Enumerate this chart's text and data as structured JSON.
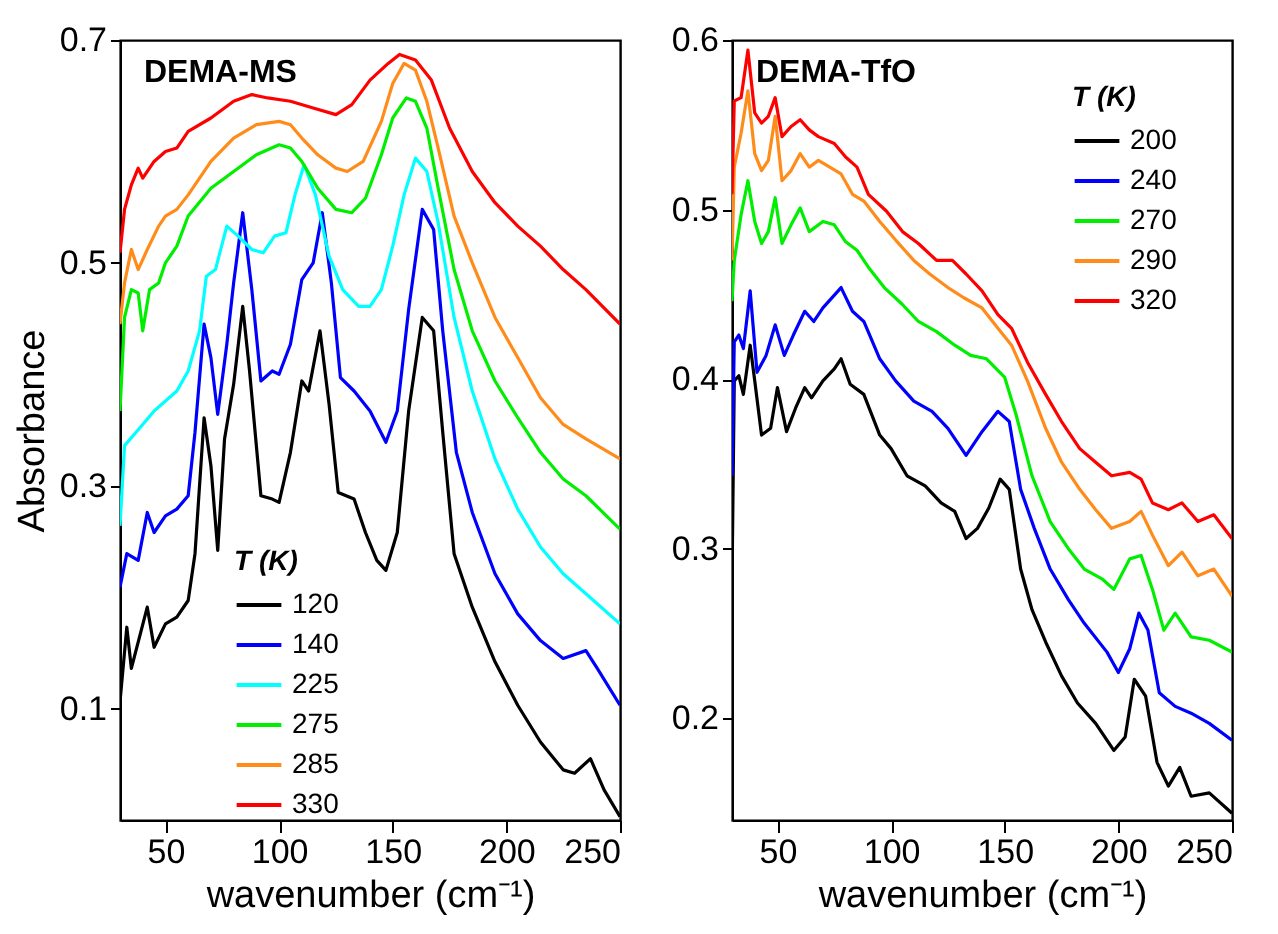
{
  "chart_data": [
    {
      "type": "line",
      "title": "DEMA-MS",
      "xlabel": "wavenumber (cm⁻¹)",
      "ylabel": "Absorbance",
      "legend_title": "T (K)",
      "legend": "bottom left",
      "grid": false,
      "line_style": "solid",
      "marker": "none",
      "xlim": [
        30,
        250
      ],
      "xticks": [
        50,
        100,
        150,
        200,
        250
      ],
      "ylim": [
        0,
        0.7
      ],
      "yticks": [
        0.1,
        0.3,
        0.5,
        0.7
      ],
      "series": [
        {
          "name": "120",
          "color": "#000000",
          "x": [
            30,
            33,
            35,
            42,
            45,
            50,
            55,
            60,
            63,
            67,
            70,
            73,
            76,
            80,
            84,
            87,
            92,
            97,
            100,
            105,
            110,
            113,
            118,
            122,
            126,
            133,
            138,
            143,
            147,
            152,
            157,
            163,
            168,
            172,
            177,
            185,
            195,
            205,
            215,
            225,
            230,
            237,
            243,
            250
          ],
          "values": [
            0.106,
            0.173,
            0.136,
            0.191,
            0.155,
            0.176,
            0.182,
            0.197,
            0.239,
            0.361,
            0.318,
            0.242,
            0.342,
            0.391,
            0.461,
            0.403,
            0.291,
            0.288,
            0.285,
            0.33,
            0.394,
            0.385,
            0.439,
            0.373,
            0.294,
            0.288,
            0.258,
            0.233,
            0.224,
            0.258,
            0.367,
            0.451,
            0.439,
            0.348,
            0.239,
            0.191,
            0.142,
            0.103,
            0.07,
            0.045,
            0.042,
            0.055,
            0.027,
            0.003
          ]
        },
        {
          "name": "140",
          "color": "#0000ff",
          "x": [
            30,
            33,
            38,
            42,
            45,
            50,
            55,
            60,
            63,
            67,
            70,
            73,
            77,
            80,
            84,
            88,
            92,
            97,
            100,
            105,
            110,
            115,
            119,
            123,
            127,
            133,
            140,
            147,
            152,
            157,
            163,
            168,
            172,
            178,
            185,
            195,
            205,
            215,
            225,
            235,
            240,
            250
          ],
          "values": [
            0.209,
            0.239,
            0.233,
            0.276,
            0.258,
            0.273,
            0.279,
            0.291,
            0.348,
            0.445,
            0.415,
            0.364,
            0.427,
            0.482,
            0.545,
            0.476,
            0.394,
            0.403,
            0.4,
            0.427,
            0.485,
            0.5,
            0.545,
            0.482,
            0.397,
            0.385,
            0.367,
            0.339,
            0.367,
            0.458,
            0.548,
            0.53,
            0.439,
            0.33,
            0.276,
            0.221,
            0.185,
            0.161,
            0.145,
            0.152,
            0.136,
            0.103
          ]
        },
        {
          "name": "225",
          "color": "#00ffff",
          "x": [
            30,
            32,
            40,
            45,
            50,
            55,
            60,
            65,
            68,
            72,
            77,
            82,
            88,
            93,
            98,
            103,
            107,
            111,
            116,
            122,
            128,
            135,
            140,
            145,
            150,
            155,
            160,
            165,
            170,
            177,
            185,
            195,
            205,
            215,
            225,
            235,
            250
          ],
          "values": [
            0.264,
            0.336,
            0.355,
            0.367,
            0.376,
            0.385,
            0.403,
            0.439,
            0.488,
            0.494,
            0.533,
            0.524,
            0.512,
            0.509,
            0.524,
            0.527,
            0.561,
            0.588,
            0.561,
            0.506,
            0.476,
            0.461,
            0.461,
            0.476,
            0.515,
            0.561,
            0.594,
            0.582,
            0.536,
            0.451,
            0.385,
            0.324,
            0.279,
            0.245,
            0.221,
            0.203,
            0.176
          ]
        },
        {
          "name": "275",
          "color": "#00ee00",
          "x": [
            30,
            32,
            35,
            38,
            40,
            43,
            47,
            50,
            55,
            60,
            70,
            80,
            90,
            100,
            105,
            110,
            117,
            125,
            132,
            138,
            145,
            150,
            156,
            160,
            165,
            170,
            177,
            185,
            195,
            205,
            215,
            225,
            235,
            250
          ],
          "values": [
            0.367,
            0.451,
            0.476,
            0.473,
            0.439,
            0.476,
            0.482,
            0.5,
            0.515,
            0.542,
            0.567,
            0.582,
            0.597,
            0.606,
            0.603,
            0.591,
            0.567,
            0.548,
            0.545,
            0.558,
            0.597,
            0.63,
            0.648,
            0.645,
            0.621,
            0.567,
            0.494,
            0.439,
            0.394,
            0.361,
            0.33,
            0.306,
            0.291,
            0.261
          ]
        },
        {
          "name": "285",
          "color": "#ff8c1a",
          "x": [
            30,
            32,
            35,
            38,
            42,
            47,
            50,
            55,
            60,
            70,
            80,
            90,
            100,
            105,
            110,
            117,
            125,
            130,
            137,
            145,
            150,
            155,
            160,
            165,
            170,
            177,
            185,
            195,
            205,
            215,
            225,
            235,
            250
          ],
          "values": [
            0.445,
            0.482,
            0.512,
            0.494,
            0.512,
            0.533,
            0.542,
            0.548,
            0.561,
            0.591,
            0.612,
            0.624,
            0.627,
            0.624,
            0.612,
            0.597,
            0.585,
            0.582,
            0.591,
            0.627,
            0.661,
            0.679,
            0.673,
            0.645,
            0.603,
            0.542,
            0.5,
            0.451,
            0.415,
            0.379,
            0.355,
            0.342,
            0.324
          ]
        },
        {
          "name": "330",
          "color": "#ff0000",
          "x": [
            30,
            32,
            35,
            38,
            40,
            45,
            50,
            55,
            60,
            70,
            80,
            88,
            95,
            105,
            115,
            125,
            132,
            140,
            148,
            153,
            160,
            167,
            175,
            185,
            195,
            205,
            215,
            225,
            235,
            250
          ],
          "values": [
            0.509,
            0.548,
            0.57,
            0.585,
            0.576,
            0.591,
            0.6,
            0.603,
            0.618,
            0.63,
            0.645,
            0.651,
            0.648,
            0.645,
            0.639,
            0.633,
            0.642,
            0.664,
            0.679,
            0.687,
            0.682,
            0.664,
            0.621,
            0.582,
            0.554,
            0.533,
            0.515,
            0.494,
            0.476,
            0.445
          ]
        }
      ]
    },
    {
      "type": "line",
      "title": "DEMA-TfO",
      "xlabel": "wavenumber (cm⁻¹)",
      "legend_title": "T (K)",
      "legend": "top right",
      "grid": false,
      "line_style": "solid",
      "marker": "none",
      "xlim": [
        30,
        250
      ],
      "xticks": [
        50,
        100,
        150,
        200,
        250
      ],
      "ylim": [
        0.14,
        0.6
      ],
      "yticks": [
        0.2,
        0.3,
        0.4,
        0.5,
        0.6
      ],
      "series": [
        {
          "name": "200",
          "color": "#000000",
          "x": [
            30,
            31,
            33,
            35,
            38,
            40,
            43,
            47,
            50,
            54,
            58,
            62,
            65,
            70,
            75,
            78,
            82,
            88,
            95,
            100,
            107,
            115,
            122,
            128,
            133,
            138,
            143,
            148,
            152,
            157,
            162,
            168,
            175,
            182,
            190,
            198,
            203,
            207,
            212,
            217,
            222,
            227,
            232,
            240,
            250
          ],
          "values": [
            0.28,
            0.399,
            0.402,
            0.391,
            0.42,
            0.399,
            0.367,
            0.371,
            0.395,
            0.369,
            0.383,
            0.395,
            0.389,
            0.399,
            0.406,
            0.412,
            0.397,
            0.391,
            0.367,
            0.359,
            0.343,
            0.337,
            0.327,
            0.322,
            0.306,
            0.312,
            0.324,
            0.341,
            0.335,
            0.288,
            0.264,
            0.245,
            0.225,
            0.209,
            0.197,
            0.181,
            0.189,
            0.223,
            0.213,
            0.174,
            0.16,
            0.171,
            0.154,
            0.156,
            0.144
          ]
        },
        {
          "name": "240",
          "color": "#0000ff",
          "x": [
            30,
            31,
            33,
            35,
            38,
            41,
            45,
            49,
            53,
            57,
            62,
            66,
            70,
            78,
            83,
            88,
            95,
            102,
            110,
            118,
            125,
            133,
            140,
            147,
            152,
            157,
            163,
            170,
            178,
            185,
            195,
            200,
            205,
            209,
            213,
            218,
            225,
            232,
            240,
            250
          ],
          "values": [
            0.343,
            0.422,
            0.426,
            0.418,
            0.452,
            0.404,
            0.414,
            0.432,
            0.414,
            0.426,
            0.44,
            0.434,
            0.442,
            0.454,
            0.44,
            0.434,
            0.412,
            0.399,
            0.387,
            0.381,
            0.371,
            0.355,
            0.369,
            0.381,
            0.375,
            0.335,
            0.312,
            0.288,
            0.27,
            0.256,
            0.239,
            0.227,
            0.241,
            0.262,
            0.252,
            0.215,
            0.207,
            0.203,
            0.197,
            0.187
          ]
        },
        {
          "name": "270",
          "color": "#00ee00",
          "x": [
            30,
            31,
            34,
            37,
            40,
            43,
            46,
            49,
            52,
            56,
            60,
            64,
            70,
            75,
            80,
            85,
            90,
            97,
            105,
            112,
            120,
            128,
            135,
            142,
            150,
            155,
            162,
            170,
            178,
            185,
            193,
            198,
            205,
            210,
            215,
            220,
            225,
            232,
            240,
            250
          ],
          "values": [
            0.446,
            0.47,
            0.497,
            0.517,
            0.493,
            0.48,
            0.487,
            0.507,
            0.48,
            0.491,
            0.501,
            0.487,
            0.493,
            0.491,
            0.481,
            0.476,
            0.466,
            0.454,
            0.444,
            0.434,
            0.428,
            0.42,
            0.414,
            0.412,
            0.401,
            0.379,
            0.343,
            0.316,
            0.3,
            0.288,
            0.282,
            0.276,
            0.294,
            0.296,
            0.276,
            0.252,
            0.262,
            0.248,
            0.246,
            0.239
          ]
        },
        {
          "name": "290",
          "color": "#ff8c1a",
          "x": [
            30,
            31,
            34,
            37,
            40,
            43,
            46,
            49,
            52,
            56,
            60,
            64,
            68,
            73,
            78,
            83,
            88,
            95,
            102,
            110,
            117,
            125,
            132,
            140,
            147,
            153,
            160,
            168,
            175,
            183,
            190,
            197,
            205,
            210,
            215,
            222,
            228,
            235,
            242,
            250
          ],
          "values": [
            0.47,
            0.525,
            0.545,
            0.57,
            0.533,
            0.523,
            0.529,
            0.555,
            0.517,
            0.523,
            0.533,
            0.525,
            0.529,
            0.525,
            0.521,
            0.509,
            0.505,
            0.493,
            0.482,
            0.47,
            0.462,
            0.454,
            0.448,
            0.442,
            0.43,
            0.42,
            0.399,
            0.371,
            0.351,
            0.335,
            0.323,
            0.312,
            0.316,
            0.322,
            0.308,
            0.29,
            0.298,
            0.284,
            0.288,
            0.272
          ]
        },
        {
          "name": "320",
          "color": "#ff0000",
          "x": [
            30,
            31,
            34,
            37,
            40,
            43,
            46,
            49,
            52,
            56,
            60,
            64,
            68,
            75,
            80,
            85,
            90,
            98,
            105,
            112,
            120,
            127,
            133,
            140,
            147,
            153,
            160,
            168,
            175,
            183,
            190,
            197,
            205,
            210,
            215,
            222,
            228,
            235,
            242,
            250
          ],
          "values": [
            0.509,
            0.564,
            0.566,
            0.594,
            0.557,
            0.551,
            0.555,
            0.566,
            0.543,
            0.549,
            0.553,
            0.547,
            0.543,
            0.539,
            0.531,
            0.525,
            0.509,
            0.499,
            0.487,
            0.48,
            0.47,
            0.47,
            0.462,
            0.452,
            0.438,
            0.43,
            0.41,
            0.391,
            0.375,
            0.359,
            0.351,
            0.343,
            0.345,
            0.341,
            0.327,
            0.323,
            0.327,
            0.316,
            0.32,
            0.306
          ]
        }
      ]
    }
  ]
}
